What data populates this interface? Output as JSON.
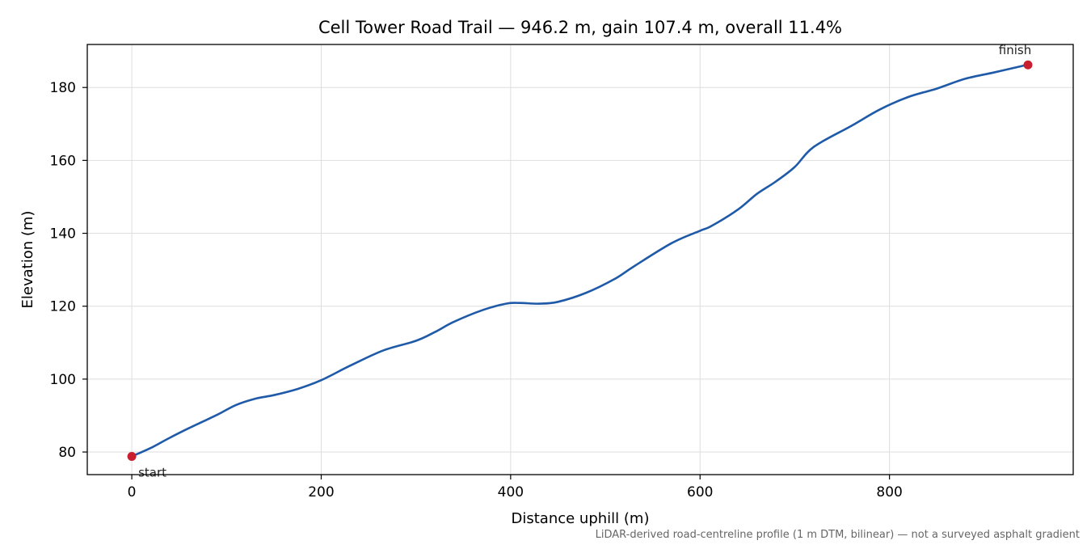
{
  "chart_data": {
    "type": "line",
    "title": "Cell Tower Road Trail — 946.2 m, gain 107.4 m, overall 11.4%",
    "xlabel": "Distance uphill (m)",
    "ylabel": "Elevation (m)",
    "footnote": "LiDAR-derived road-centreline profile (1 m DTM, bilinear) — not a surveyed asphalt gradient",
    "xlim": [
      -47,
      994
    ],
    "ylim": [
      73.8,
      191.8
    ],
    "x_ticks": [
      0,
      200,
      400,
      600,
      800
    ],
    "y_ticks": [
      80,
      100,
      120,
      140,
      160,
      180
    ],
    "grid": true,
    "line_color": "#1f5aa8",
    "marker_color": "#c81e2d",
    "series": [
      {
        "x": [
          0,
          20,
          40,
          60,
          90,
          110,
          130,
          150,
          175,
          200,
          230,
          265,
          300,
          320,
          340,
          370,
          395,
          410,
          430,
          450,
          480,
          510,
          530,
          570,
          600,
          612,
          640,
          660,
          680,
          700,
          720,
          760,
          790,
          820,
          850,
          880,
          910,
          940,
          946.2
        ],
        "y": [
          78.8,
          81.1,
          83.9,
          86.5,
          90.2,
          92.9,
          94.6,
          95.6,
          97.3,
          99.7,
          103.6,
          107.8,
          110.5,
          112.9,
          115.7,
          118.9,
          120.7,
          120.9,
          120.7,
          121.2,
          123.7,
          127.5,
          130.9,
          137.3,
          140.7,
          142.0,
          146.5,
          150.8,
          154.2,
          158.2,
          163.7,
          169.5,
          174.0,
          177.4,
          179.7,
          182.4,
          184.1,
          185.9,
          186.2
        ]
      }
    ],
    "annotations": [
      {
        "label": "start",
        "x": 0,
        "y": 78.8
      },
      {
        "label": "finish",
        "x": 946.2,
        "y": 186.2
      }
    ]
  }
}
